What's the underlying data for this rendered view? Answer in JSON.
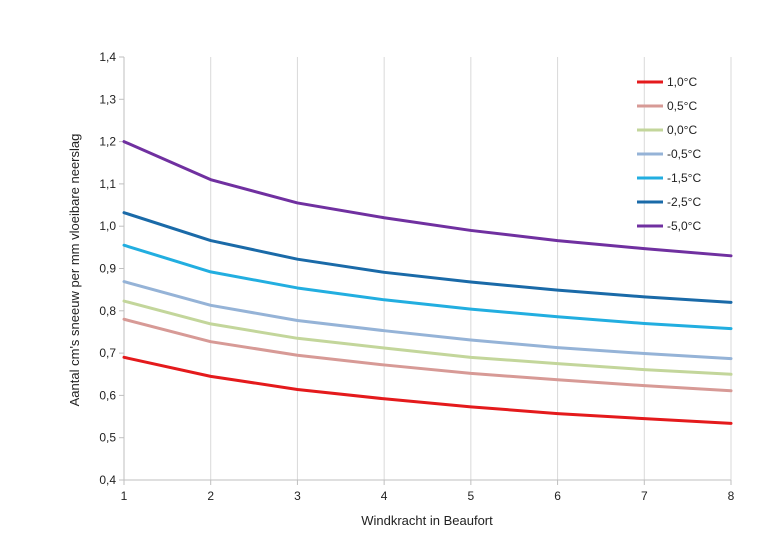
{
  "chart_data": {
    "type": "line",
    "title": "",
    "xlabel": "Windkracht  in  Beaufort",
    "ylabel": "Aantal  cm's  sneeuw  per  mm  vloeibare  neerslag",
    "x": [
      1,
      2,
      3,
      4,
      5,
      6,
      7,
      8
    ],
    "x_tick_labels": [
      "1",
      "2",
      "3",
      "4",
      "5",
      "6",
      "7",
      "8"
    ],
    "xlim": [
      1,
      8
    ],
    "ylim": [
      0.4,
      1.4
    ],
    "y_ticks": [
      0.4,
      0.5,
      0.6,
      0.7,
      0.8,
      0.9,
      1.0,
      1.1,
      1.2,
      1.3,
      1.4
    ],
    "y_tick_labels": [
      "0,4",
      "0,5",
      "0,6",
      "0,7",
      "0,8",
      "0,9",
      "1,0",
      "1,1",
      "1,2",
      "1,3",
      "1,4"
    ],
    "grid": "vertical",
    "legend_position": "top-right",
    "series": [
      {
        "name": "1,0°C",
        "color": "#e41a1c",
        "values": [
          0.69,
          0.645,
          0.614,
          0.592,
          0.573,
          0.557,
          0.545,
          0.534
        ]
      },
      {
        "name": "0,5°C",
        "color": "#d79a96",
        "values": [
          0.78,
          0.727,
          0.695,
          0.672,
          0.652,
          0.637,
          0.623,
          0.611
        ]
      },
      {
        "name": "0,0°C",
        "color": "#c3d69b",
        "values": [
          0.823,
          0.769,
          0.735,
          0.712,
          0.69,
          0.675,
          0.661,
          0.65
        ]
      },
      {
        "name": "-0,5°C",
        "color": "#95b3d7",
        "values": [
          0.869,
          0.813,
          0.777,
          0.753,
          0.731,
          0.713,
          0.699,
          0.687
        ]
      },
      {
        "name": "-1,5°C",
        "color": "#22aee0",
        "values": [
          0.955,
          0.892,
          0.854,
          0.826,
          0.804,
          0.786,
          0.77,
          0.758
        ]
      },
      {
        "name": "-2,5°C",
        "color": "#1a6aa8",
        "values": [
          1.032,
          0.966,
          0.922,
          0.891,
          0.868,
          0.849,
          0.833,
          0.82
        ]
      },
      {
        "name": "-5,0°C",
        "color": "#7030a0",
        "values": [
          1.2,
          1.11,
          1.055,
          1.02,
          0.99,
          0.966,
          0.947,
          0.93
        ]
      }
    ]
  }
}
